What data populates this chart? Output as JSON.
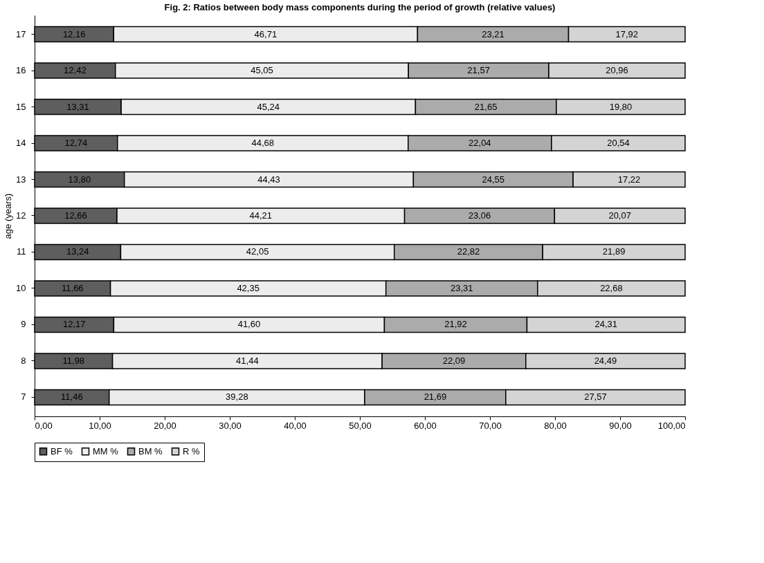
{
  "chart_data": {
    "type": "bar",
    "orientation": "horizontal",
    "stacked": true,
    "title": "Fig. 2: Ratios between body mass components during the period of growth (relative values)",
    "ylabel": "age (years)",
    "categories": [
      "17",
      "16",
      "15",
      "14",
      "13",
      "12",
      "11",
      "10",
      "9",
      "8",
      "7"
    ],
    "series": [
      {
        "name": "BF %",
        "color": "#5e5e5e",
        "values": [
          12.16,
          12.42,
          13.31,
          12.74,
          13.8,
          12.66,
          13.24,
          11.66,
          12.17,
          11.98,
          11.46
        ],
        "value_labels": [
          "12,16",
          "12,42",
          "13,31",
          "12,74",
          "13,80",
          "12,66",
          "13,24",
          "11,66",
          "12,17",
          "11,98",
          "11,46"
        ]
      },
      {
        "name": "MM %",
        "color": "#ececec",
        "values": [
          46.71,
          45.05,
          45.24,
          44.68,
          44.43,
          44.21,
          42.05,
          42.35,
          41.6,
          41.44,
          39.28
        ],
        "value_labels": [
          "46,71",
          "45,05",
          "45,24",
          "44,68",
          "44,43",
          "44,21",
          "42,05",
          "42,35",
          "41,60",
          "41,44",
          "39,28"
        ]
      },
      {
        "name": "BM %",
        "color": "#ababab",
        "values": [
          23.21,
          21.57,
          21.65,
          22.04,
          24.55,
          23.06,
          22.82,
          23.31,
          21.92,
          22.09,
          21.69
        ],
        "value_labels": [
          "23,21",
          "21,57",
          "21,65",
          "22,04",
          "24,55",
          "23,06",
          "22,82",
          "23,31",
          "21,92",
          "22,09",
          "21,69"
        ]
      },
      {
        "name": "R %",
        "color": "#d4d4d4",
        "values": [
          17.92,
          20.96,
          19.8,
          20.54,
          17.22,
          20.07,
          21.89,
          22.68,
          24.31,
          24.49,
          27.57
        ],
        "value_labels": [
          "17,92",
          "20,96",
          "19,80",
          "20,54",
          "17,22",
          "20,07",
          "21,89",
          "22,68",
          "24,31",
          "24,49",
          "27,57"
        ]
      }
    ],
    "xlim": [
      0,
      100
    ],
    "xticks": [
      {
        "value": 0,
        "label": "0,00"
      },
      {
        "value": 10,
        "label": "10,00"
      },
      {
        "value": 20,
        "label": "20,00"
      },
      {
        "value": 30,
        "label": "30,00"
      },
      {
        "value": 40,
        "label": "40,00"
      },
      {
        "value": 50,
        "label": "50,00"
      },
      {
        "value": 60,
        "label": "60,00"
      },
      {
        "value": 70,
        "label": "70,00"
      },
      {
        "value": 80,
        "label": "80,00"
      },
      {
        "value": 90,
        "label": "90,00"
      },
      {
        "value": 100,
        "label": "100,00"
      }
    ],
    "legend": "bottom"
  }
}
